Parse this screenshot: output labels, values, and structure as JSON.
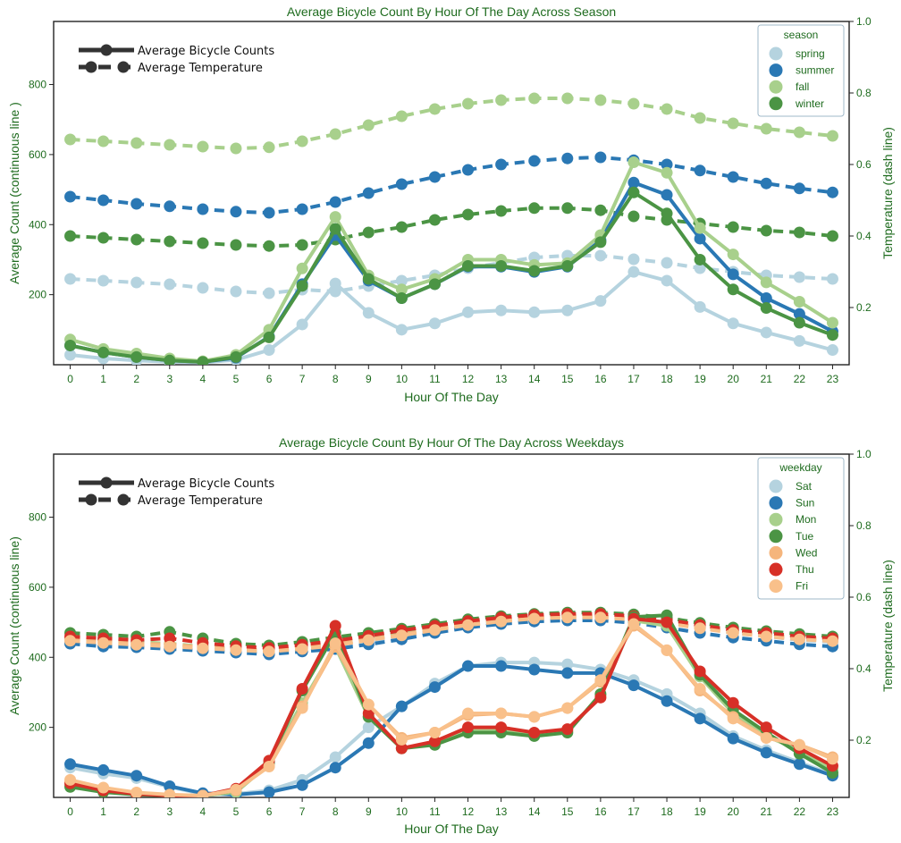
{
  "chart_data": [
    {
      "type": "line",
      "title": "Average Bicycle Count By Hour Of The Day Across Season",
      "xlabel": "Hour Of The Day",
      "ylabel": "Average Count (continuous line )",
      "y2label": "Temperature  (dash line)",
      "x": [
        0,
        1,
        2,
        3,
        4,
        5,
        6,
        7,
        8,
        9,
        10,
        11,
        12,
        13,
        14,
        15,
        16,
        17,
        18,
        19,
        20,
        21,
        22,
        23
      ],
      "x_ticks": [
        "0",
        "1",
        "2",
        "3",
        "4",
        "5",
        "6",
        "7",
        "8",
        "9",
        "10",
        "11",
        "12",
        "13",
        "14",
        "15",
        "16",
        "17",
        "18",
        "19",
        "20",
        "21",
        "22",
        "23"
      ],
      "ylim": [
        0,
        980
      ],
      "y_ticks": [
        "200",
        "400",
        "600",
        "800"
      ],
      "y2lim": [
        0.04,
        1.0
      ],
      "y2_ticks": [
        "0.2",
        "0.4",
        "0.6",
        "0.8",
        "1.0"
      ],
      "grid": false,
      "legend_title": "season",
      "legend_position": "top-right",
      "line_key": [
        "Average Bicycle Counts",
        "Average Temperature"
      ],
      "series": [
        {
          "name": "spring",
          "color": "#b5d3df",
          "counts": [
            28,
            18,
            12,
            8,
            6,
            14,
            42,
            115,
            232,
            148,
            100,
            118,
            150,
            155,
            150,
            155,
            182,
            265,
            240,
            165,
            118,
            92,
            68,
            42
          ],
          "temps": [
            0.28,
            0.275,
            0.27,
            0.265,
            0.255,
            0.245,
            0.24,
            0.25,
            0.245,
            0.26,
            0.275,
            0.29,
            0.31,
            0.325,
            0.34,
            0.345,
            0.345,
            0.335,
            0.325,
            0.31,
            0.3,
            0.29,
            0.285,
            0.28
          ]
        },
        {
          "name": "summer",
          "color": "#2a78b4",
          "counts": [
            55,
            35,
            22,
            12,
            8,
            20,
            80,
            230,
            370,
            240,
            190,
            230,
            280,
            280,
            265,
            280,
            355,
            520,
            485,
            360,
            258,
            190,
            145,
            95
          ],
          "temps": [
            0.51,
            0.5,
            0.49,
            0.483,
            0.475,
            0.468,
            0.465,
            0.475,
            0.495,
            0.52,
            0.545,
            0.565,
            0.585,
            0.6,
            0.61,
            0.617,
            0.62,
            0.612,
            0.6,
            0.583,
            0.565,
            0.547,
            0.533,
            0.522
          ]
        },
        {
          "name": "fall",
          "color": "#a8d08c",
          "counts": [
            72,
            45,
            32,
            18,
            10,
            28,
            100,
            275,
            422,
            255,
            215,
            245,
            300,
            300,
            285,
            290,
            370,
            578,
            548,
            390,
            315,
            235,
            180,
            120
          ],
          "temps": [
            0.67,
            0.665,
            0.66,
            0.655,
            0.65,
            0.645,
            0.648,
            0.665,
            0.685,
            0.71,
            0.735,
            0.755,
            0.77,
            0.78,
            0.785,
            0.785,
            0.78,
            0.77,
            0.755,
            0.73,
            0.715,
            0.7,
            0.69,
            0.68
          ]
        },
        {
          "name": "winter",
          "color": "#4b9444",
          "counts": [
            55,
            35,
            22,
            12,
            8,
            22,
            78,
            225,
            388,
            245,
            190,
            230,
            282,
            282,
            268,
            282,
            350,
            492,
            432,
            300,
            215,
            162,
            120,
            85
          ],
          "temps": [
            0.4,
            0.395,
            0.39,
            0.385,
            0.38,
            0.375,
            0.372,
            0.375,
            0.39,
            0.41,
            0.425,
            0.445,
            0.46,
            0.47,
            0.478,
            0.478,
            0.472,
            0.455,
            0.445,
            0.435,
            0.425,
            0.415,
            0.41,
            0.4
          ]
        }
      ]
    },
    {
      "type": "line",
      "title": "Average Bicycle Count By Hour Of The Day Across Weekdays",
      "xlabel": "Hour Of The Day",
      "ylabel": "Average Count (continuous line)",
      "y2label": "Temperature  (dash line)",
      "x": [
        0,
        1,
        2,
        3,
        4,
        5,
        6,
        7,
        8,
        9,
        10,
        11,
        12,
        13,
        14,
        15,
        16,
        17,
        18,
        19,
        20,
        21,
        22,
        23
      ],
      "x_ticks": [
        "0",
        "1",
        "2",
        "3",
        "4",
        "5",
        "6",
        "7",
        "8",
        "9",
        "10",
        "11",
        "12",
        "13",
        "14",
        "15",
        "16",
        "17",
        "18",
        "19",
        "20",
        "21",
        "22",
        "23"
      ],
      "ylim": [
        0,
        980
      ],
      "y_ticks": [
        "200",
        "400",
        "600",
        "800"
      ],
      "y2lim": [
        0.04,
        1.0
      ],
      "y2_ticks": [
        "0.2",
        "0.4",
        "0.6",
        "0.8",
        "1.0"
      ],
      "grid": false,
      "legend_title": "weekday",
      "legend_position": "top-right",
      "line_key": [
        "Average Bicycle Counts",
        "Average Temperature"
      ],
      "series": [
        {
          "name": "Sat",
          "color": "#b5d3df",
          "counts": [
            85,
            68,
            55,
            30,
            10,
            10,
            20,
            50,
            115,
            200,
            260,
            325,
            375,
            385,
            385,
            380,
            365,
            335,
            295,
            240,
            175,
            135,
            100,
            65
          ],
          "temps": [
            0.475,
            0.47,
            0.465,
            0.46,
            0.455,
            0.45,
            0.445,
            0.45,
            0.46,
            0.475,
            0.49,
            0.505,
            0.52,
            0.53,
            0.54,
            0.545,
            0.545,
            0.54,
            0.53,
            0.515,
            0.5,
            0.49,
            0.48,
            0.475
          ]
        },
        {
          "name": "Sun",
          "color": "#2a78b4",
          "counts": [
            95,
            78,
            62,
            32,
            12,
            8,
            15,
            35,
            85,
            155,
            260,
            315,
            375,
            375,
            365,
            355,
            355,
            320,
            275,
            225,
            168,
            128,
            95,
            62
          ],
          "temps": [
            0.47,
            0.462,
            0.46,
            0.455,
            0.45,
            0.445,
            0.44,
            0.448,
            0.455,
            0.468,
            0.482,
            0.5,
            0.515,
            0.525,
            0.532,
            0.535,
            0.535,
            0.528,
            0.515,
            0.5,
            0.487,
            0.478,
            0.468,
            0.462
          ]
        },
        {
          "name": "Mon",
          "color": "#a8d08c",
          "counts": [
            35,
            20,
            10,
            5,
            5,
            15,
            95,
            270,
            430,
            230,
            140,
            155,
            190,
            190,
            180,
            190,
            290,
            505,
            490,
            345,
            240,
            175,
            135,
            80
          ],
          "temps": [
            0.485,
            0.48,
            0.475,
            0.47,
            0.462,
            0.455,
            0.45,
            0.458,
            0.47,
            0.485,
            0.5,
            0.515,
            0.528,
            0.537,
            0.543,
            0.546,
            0.546,
            0.54,
            0.53,
            0.515,
            0.505,
            0.495,
            0.487,
            0.482
          ]
        },
        {
          "name": "Tue",
          "color": "#4b9444",
          "counts": [
            30,
            15,
            8,
            5,
            5,
            20,
            100,
            305,
            470,
            230,
            140,
            150,
            185,
            185,
            175,
            185,
            295,
            515,
            520,
            350,
            250,
            185,
            125,
            70
          ],
          "temps": [
            0.5,
            0.495,
            0.49,
            0.503,
            0.485,
            0.47,
            0.465,
            0.475,
            0.488,
            0.5,
            0.512,
            0.525,
            0.538,
            0.547,
            0.553,
            0.557,
            0.557,
            0.552,
            0.542,
            0.528,
            0.515,
            0.505,
            0.497,
            0.49
          ]
        },
        {
          "name": "Wed",
          "color": "#f5b57c",
          "counts": [
            45,
            25,
            12,
            5,
            5,
            20,
            90,
            260,
            430,
            265,
            170,
            185,
            235,
            240,
            230,
            255,
            330,
            490,
            420,
            305,
            230,
            170,
            150,
            115
          ],
          "temps": [
            0.48,
            0.475,
            0.47,
            0.468,
            0.46,
            0.455,
            0.45,
            0.458,
            0.468,
            0.482,
            0.495,
            0.51,
            0.525,
            0.535,
            0.543,
            0.547,
            0.547,
            0.54,
            0.53,
            0.515,
            0.502,
            0.492,
            0.485,
            0.48
          ]
        },
        {
          "name": "Thu",
          "color": "#d73027",
          "counts": [
            40,
            20,
            10,
            5,
            5,
            25,
            105,
            310,
            490,
            240,
            140,
            160,
            200,
            200,
            185,
            195,
            285,
            510,
            500,
            360,
            270,
            200,
            140,
            90
          ],
          "temps": [
            0.49,
            0.485,
            0.48,
            0.485,
            0.472,
            0.463,
            0.458,
            0.467,
            0.478,
            0.492,
            0.507,
            0.52,
            0.533,
            0.543,
            0.55,
            0.553,
            0.553,
            0.547,
            0.537,
            0.522,
            0.508,
            0.5,
            0.49,
            0.485
          ]
        },
        {
          "name": "Fri",
          "color": "#f9c08a",
          "counts": [
            50,
            28,
            14,
            8,
            5,
            22,
            88,
            255,
            440,
            265,
            165,
            185,
            240,
            240,
            230,
            255,
            335,
            495,
            420,
            310,
            225,
            170,
            150,
            110
          ],
          "temps": [
            0.478,
            0.472,
            0.467,
            0.462,
            0.457,
            0.452,
            0.448,
            0.455,
            0.465,
            0.48,
            0.493,
            0.508,
            0.522,
            0.532,
            0.54,
            0.543,
            0.543,
            0.537,
            0.527,
            0.513,
            0.5,
            0.49,
            0.482,
            0.477
          ]
        }
      ]
    }
  ]
}
